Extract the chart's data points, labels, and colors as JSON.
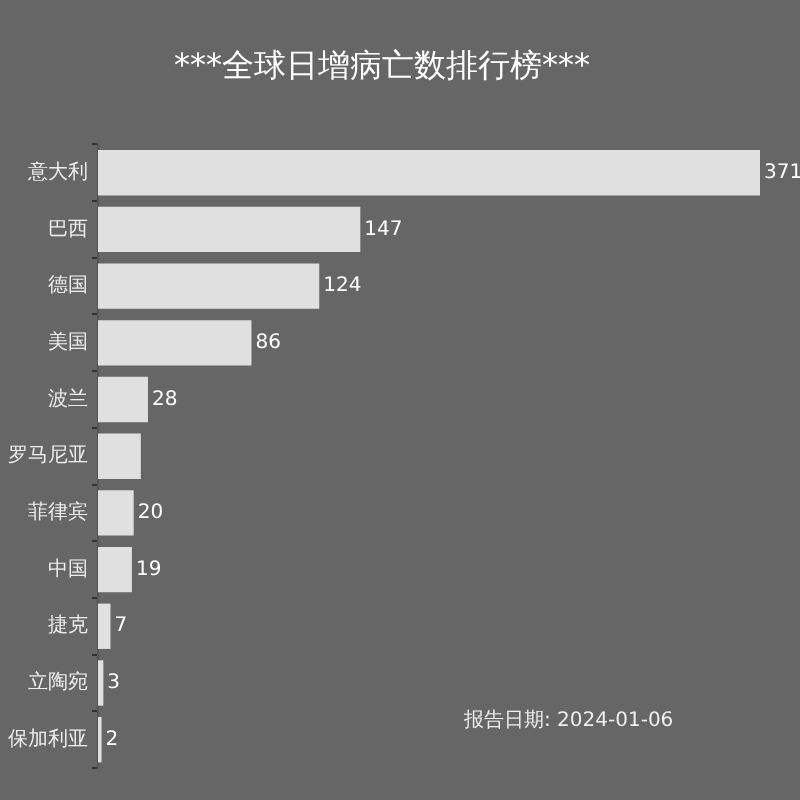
{
  "chart_data": {
    "type": "bar",
    "orientation": "horizontal",
    "title": "***全球日增病亡数排行榜***",
    "categories": [
      "意大利",
      "巴西",
      "德国",
      "美国",
      "波兰",
      "罗马尼亚",
      "菲律宾",
      "中国",
      "捷克",
      "立陶宛",
      "保加利亚"
    ],
    "values": [
      371,
      147,
      124,
      86,
      28,
      24,
      20,
      19,
      7,
      3,
      2
    ],
    "value_labels": [
      "371",
      "147",
      "124",
      "86",
      "28",
      null,
      "20",
      "19",
      "7",
      "3",
      "2"
    ],
    "color": "#e0e0e0",
    "grid": false,
    "legend": false,
    "tick_labels": "y",
    "annotations": [
      "报告日期: 2024-01-06"
    ]
  }
}
